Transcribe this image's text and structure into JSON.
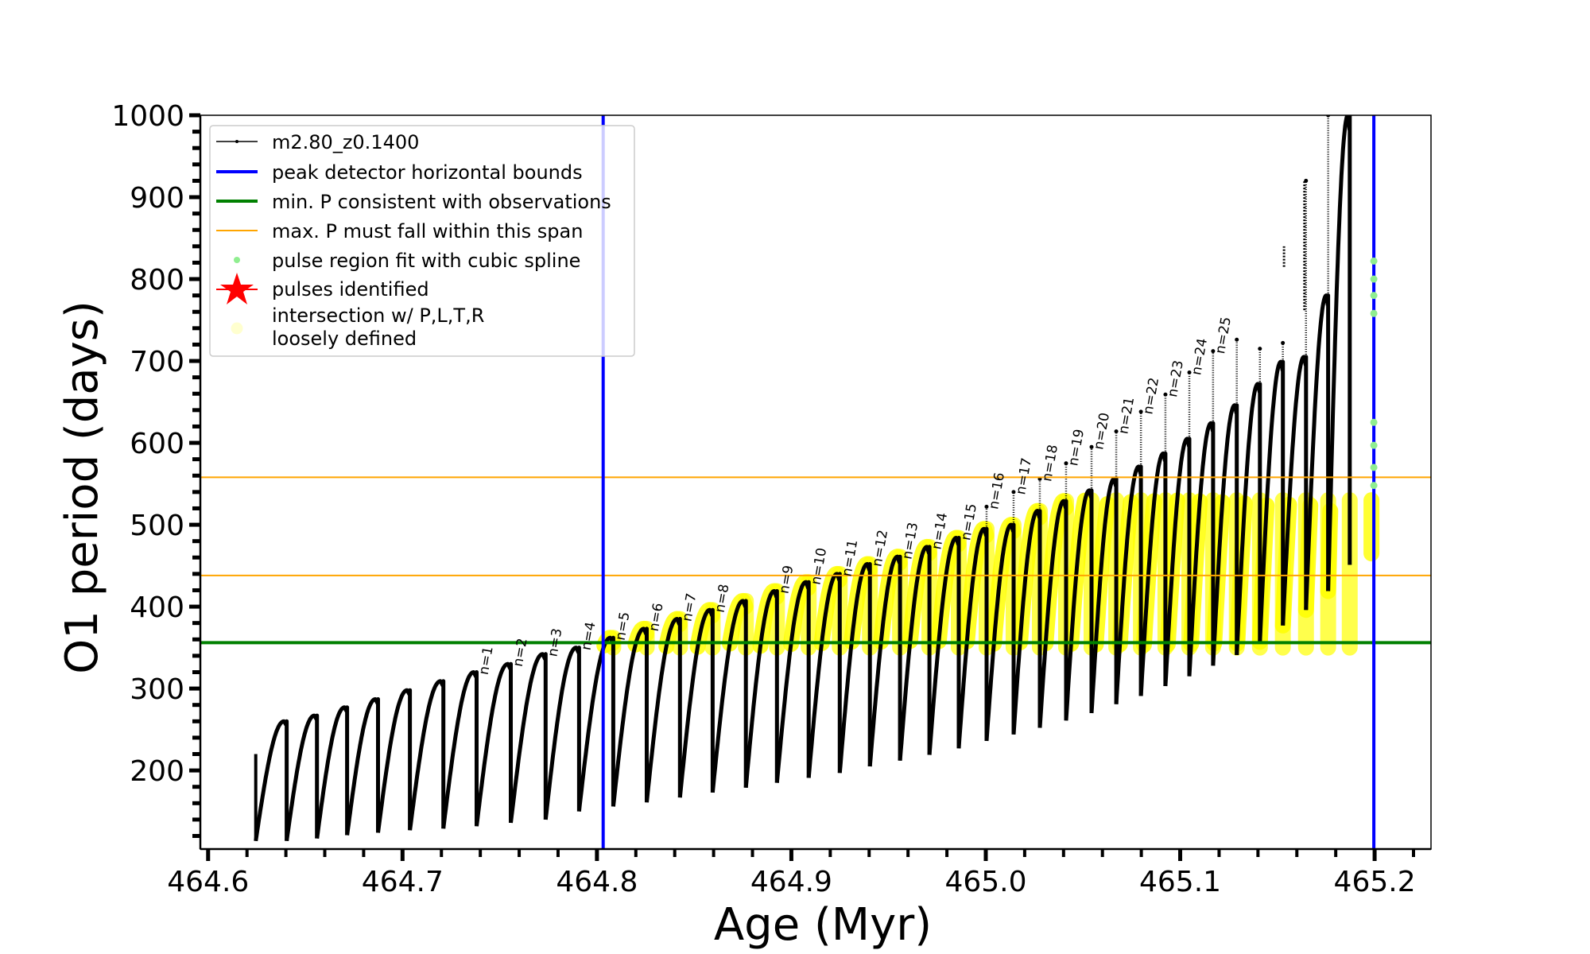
{
  "chart_data": {
    "type": "line",
    "title": "",
    "xlabel": "Age (Myr)",
    "ylabel": "O1 period (days)",
    "xlim": [
      464.596,
      465.229
    ],
    "ylim": [
      104,
      1000
    ],
    "xticks": [
      464.6,
      464.7,
      464.8,
      464.9,
      465.0,
      465.1,
      465.2
    ],
    "xtick_labels": [
      "464.6",
      "464.7",
      "464.8",
      "464.9",
      "465.0",
      "465.1",
      "465.2"
    ],
    "yticks": [
      200,
      300,
      400,
      500,
      600,
      700,
      800,
      900,
      1000
    ],
    "ytick_labels": [
      "200",
      "300",
      "400",
      "500",
      "600",
      "700",
      "800",
      "900",
      "1000"
    ],
    "grid": false,
    "legend_position": "top-left",
    "series": [
      {
        "name": "m2.80_z0.1400",
        "kind": "pulse-track",
        "color": "#000000",
        "start_age": 464.6245,
        "start_value": 220,
        "pulses": [
          {
            "age": 464.6404,
            "peak": 260,
            "min": 114
          },
          {
            "age": 464.656,
            "peak": 267,
            "min": 117
          },
          {
            "age": 464.6715,
            "peak": 277,
            "min": 121
          },
          {
            "age": 464.6874,
            "peak": 287,
            "min": 124
          },
          {
            "age": 464.7038,
            "peak": 298,
            "min": 127
          },
          {
            "age": 464.721,
            "peak": 309,
            "min": 129
          },
          {
            "age": 464.7381,
            "peak": 320,
            "min": 132
          },
          {
            "age": 464.7557,
            "peak": 330,
            "min": 136
          },
          {
            "age": 464.7736,
            "peak": 342,
            "min": 140
          },
          {
            "age": 464.7908,
            "peak": 350,
            "min": 150
          },
          {
            "age": 464.8084,
            "peak": 362,
            "min": 156
          },
          {
            "age": 464.8256,
            "peak": 373,
            "min": 161
          },
          {
            "age": 464.8427,
            "peak": 385,
            "min": 167
          },
          {
            "age": 464.8595,
            "peak": 396,
            "min": 173
          },
          {
            "age": 464.8766,
            "peak": 407,
            "min": 179
          },
          {
            "age": 464.8926,
            "peak": 419,
            "min": 185
          },
          {
            "age": 464.9089,
            "peak": 430,
            "min": 191
          },
          {
            "age": 464.9249,
            "peak": 440,
            "min": 197
          },
          {
            "age": 464.9404,
            "peak": 452,
            "min": 205
          },
          {
            "age": 464.9559,
            "peak": 461,
            "min": 212
          },
          {
            "age": 464.971,
            "peak": 473,
            "min": 219
          },
          {
            "age": 464.9861,
            "peak": 484,
            "min": 227
          },
          {
            "age": 465.0004,
            "peak": 495,
            "min": 236,
            "spike": 522
          },
          {
            "age": 465.0143,
            "peak": 500,
            "min": 244,
            "spike": 540
          },
          {
            "age": 465.0278,
            "peak": 517,
            "min": 252,
            "spike": 556
          },
          {
            "age": 465.0413,
            "peak": 529,
            "min": 261,
            "spike": 575
          },
          {
            "age": 465.0544,
            "peak": 542,
            "min": 270,
            "spike": 595
          },
          {
            "age": 465.0671,
            "peak": 556,
            "min": 281,
            "spike": 614
          },
          {
            "age": 465.0798,
            "peak": 571,
            "min": 291,
            "spike": 638
          },
          {
            "age": 465.0924,
            "peak": 587,
            "min": 303,
            "spike": 659
          },
          {
            "age": 465.1047,
            "peak": 605,
            "min": 315,
            "spike": 686
          },
          {
            "age": 465.1169,
            "peak": 624,
            "min": 328,
            "spike": 712
          },
          {
            "age": 465.1291,
            "peak": 646,
            "min": 341,
            "spike": 726
          },
          {
            "age": 465.141,
            "peak": 672,
            "min": 357,
            "spike": 715
          },
          {
            "age": 465.1528,
            "peak": 699,
            "min": 377,
            "spike": 722
          },
          {
            "age": 465.1647,
            "peak": 705,
            "min": 396,
            "spike": 920
          },
          {
            "age": 465.1761,
            "peak": 780,
            "min": 419,
            "spike": 1000
          },
          {
            "age": 465.1872,
            "peak": 1000,
            "min": 451,
            "spike": 1000
          }
        ],
        "isolated_segments": [
          {
            "age": 465.1534,
            "from": 815,
            "to": 840
          },
          {
            "age": 465.1639,
            "from": 762,
            "to": 920
          }
        ]
      },
      {
        "name": "peak detector horizontal bounds",
        "kind": "vline",
        "color": "#0000ff",
        "x": [
          464.8032,
          465.1996
        ]
      },
      {
        "name": "min. P consistent with observations",
        "kind": "hline",
        "color": "#008000",
        "y": [
          356
        ]
      },
      {
        "name": "max. P must fall within this span",
        "kind": "hline",
        "color": "#ffa500",
        "y": [
          438,
          558
        ]
      },
      {
        "name": "pulse region fit with cubic spline",
        "kind": "scatter",
        "color": "#90ee90",
        "x": [
          465.1996,
          465.1996,
          465.1996,
          465.1996,
          465.1996,
          465.1996,
          465.1996,
          465.1996
        ],
        "y": [
          822,
          800,
          780,
          758,
          625,
          597,
          570,
          548
        ]
      },
      {
        "name": "pulses identified",
        "kind": "scatter",
        "color": "#ff0000",
        "x": [],
        "y": []
      },
      {
        "name": "intersection w/ P,L,T,R\nloosely defined",
        "kind": "band",
        "color": "#ffff00",
        "from_age": 464.802,
        "p_min": 350,
        "p_max": 530
      }
    ],
    "annotations": [
      {
        "text": "n=1",
        "age": 464.7381
      },
      {
        "text": "n=2",
        "age": 464.7557
      },
      {
        "text": "n=3",
        "age": 464.7736
      },
      {
        "text": "n=4",
        "age": 464.7908
      },
      {
        "text": "n=5",
        "age": 464.8084
      },
      {
        "text": "n=6",
        "age": 464.8256
      },
      {
        "text": "n=7",
        "age": 464.8427
      },
      {
        "text": "n=8",
        "age": 464.8595
      },
      {
        "text": "n=9",
        "age": 464.8926
      },
      {
        "text": "n=10",
        "age": 464.9089
      },
      {
        "text": "n=11",
        "age": 464.9249
      },
      {
        "text": "n=12",
        "age": 464.9404
      },
      {
        "text": "n=13",
        "age": 464.9559
      },
      {
        "text": "n=14",
        "age": 464.971
      },
      {
        "text": "n=15",
        "age": 464.9861
      },
      {
        "text": "n=16",
        "age": 465.0004
      },
      {
        "text": "n=17",
        "age": 465.0143
      },
      {
        "text": "n=18",
        "age": 465.0278
      },
      {
        "text": "n=19",
        "age": 465.0413
      },
      {
        "text": "n=20",
        "age": 465.0544
      },
      {
        "text": "n=21",
        "age": 465.0671
      },
      {
        "text": "n=22",
        "age": 465.0798
      },
      {
        "text": "n=23",
        "age": 465.0924
      },
      {
        "text": "n=24",
        "age": 465.1047
      },
      {
        "text": "n=25",
        "age": 465.1169
      }
    ]
  },
  "legend": {
    "entries": [
      {
        "label": "m2.80_z0.1400",
        "marker": "line-dot",
        "color": "#000000"
      },
      {
        "label": "peak detector horizontal bounds",
        "marker": "thick-line",
        "color": "#0000ff"
      },
      {
        "label": "min. P consistent with observations",
        "marker": "thick-line",
        "color": "#008000"
      },
      {
        "label": "max. P must fall within this span",
        "marker": "thin-line",
        "color": "#ffa500"
      },
      {
        "label": "pulse region fit with cubic spline",
        "marker": "dot",
        "color": "#90ee90"
      },
      {
        "label": "pulses identified",
        "marker": "star",
        "color": "#ff0000"
      },
      {
        "label": "intersection w/ P,L,T,R",
        "label2": "loosely defined",
        "marker": "circle",
        "color": "#ffffcc"
      }
    ]
  }
}
